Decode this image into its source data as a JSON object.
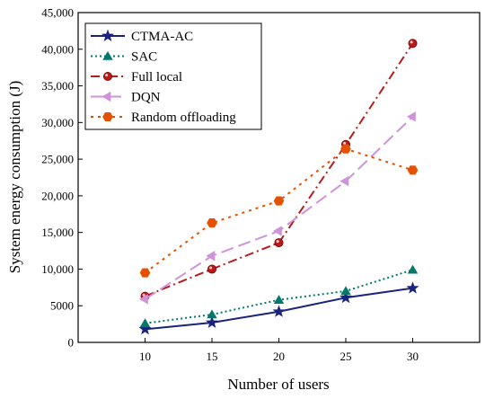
{
  "chart_data": {
    "type": "line",
    "xlabel": "Number of users",
    "ylabel": "System energy consumption (J)",
    "x": [
      10,
      15,
      20,
      25,
      30
    ],
    "xlim": [
      5,
      35
    ],
    "ylim": [
      0,
      45000
    ],
    "xticks": [
      "10",
      "15",
      "20",
      "25",
      "30"
    ],
    "yticks": [
      "0",
      "5000",
      "10,000",
      "15,000",
      "20,000",
      "25,000",
      "30,000",
      "35,000",
      "40,000",
      "45,000"
    ],
    "ytick_values": [
      0,
      5000,
      10000,
      15000,
      20000,
      25000,
      30000,
      35000,
      40000,
      45000
    ],
    "grid": false,
    "legend_position": "top-left",
    "series": [
      {
        "name": "CTMA-AC",
        "values": [
          1800,
          2700,
          4200,
          6100,
          7400
        ],
        "color": "#1a237e",
        "line_style": "solid",
        "marker": "star"
      },
      {
        "name": "SAC",
        "values": [
          2600,
          3800,
          5800,
          7000,
          9900
        ],
        "color": "#00796b",
        "line_style": "dotted",
        "marker": "triangle-up"
      },
      {
        "name": "Full local",
        "values": [
          6300,
          10000,
          13600,
          27000,
          40800
        ],
        "color": "#b71c1c",
        "line_style": "dash-dot",
        "marker": "circle"
      },
      {
        "name": "DQN",
        "values": [
          5900,
          11800,
          15200,
          22000,
          30800
        ],
        "color": "#ce93d8",
        "line_style": "dashed",
        "marker": "triangle-left"
      },
      {
        "name": "Random offloading",
        "values": [
          9500,
          16300,
          19300,
          26400,
          23500
        ],
        "color": "#e65100",
        "line_style": "short-dotted",
        "marker": "hexagon"
      }
    ]
  }
}
